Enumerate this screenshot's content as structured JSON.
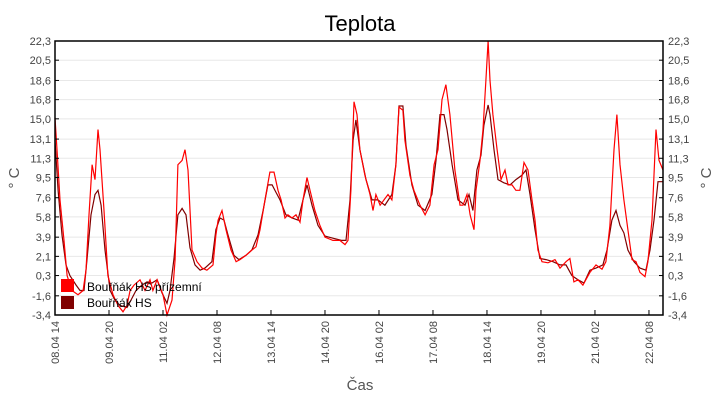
{
  "chart_data": {
    "type": "line",
    "title": "Teplota",
    "xlabel": "Čas",
    "ylabel": "° C",
    "ylabel_right": "° C",
    "x_unit": "hours since 08.04 14:00",
    "xlim": [
      0,
      337.8
    ],
    "ylim": [
      -3.4,
      22.3
    ],
    "grid": true,
    "legend_position": "bottom-left",
    "y_ticks": [
      22.3,
      20.5,
      18.6,
      16.8,
      15.0,
      13.1,
      11.3,
      9.5,
      7.6,
      5.8,
      3.9,
      2.1,
      0.3,
      -1.6,
      -3.4
    ],
    "y_tick_labels": [
      "22,3",
      "20,5",
      "18,6",
      "16,8",
      "15,0",
      "13,1",
      "11,3",
      "9,5",
      "7,6",
      "5,8",
      "3,9",
      "2,1",
      "0,3",
      "-1,6",
      "-3,4"
    ],
    "x_ticks": [
      0,
      30,
      60,
      90,
      120,
      150,
      180,
      210,
      240,
      270,
      300,
      330
    ],
    "x_tick_labels": [
      "08.04 14",
      "09.04 20",
      "11.04 02",
      "12.04 08",
      "13.04 14",
      "14.04 20",
      "16.04 02",
      "17.04 08",
      "18.04 14",
      "19.04 20",
      "21.04 02",
      "22.04 08"
    ],
    "series": [
      {
        "name": "Bouřňák HS přízemní",
        "color": "#ff0000",
        "x": [
          0,
          1.1,
          2.8,
          5.0,
          6.7,
          9.4,
          12.8,
          15.6,
          17.2,
          18.9,
          20.6,
          22.2,
          23.9,
          25.0,
          27.2,
          29.4,
          32.2,
          35.0,
          37.8,
          40.0,
          41.7,
          43.9,
          47.2,
          50.0,
          52.8,
          54.4,
          56.7,
          60.0,
          62.2,
          65.0,
          66.7,
          68.3,
          70.6,
          72.2,
          73.9,
          76.1,
          78.9,
          81.7,
          84.4,
          87.8,
          89.4,
          90.6,
          92.8,
          95.0,
          97.8,
          100.6,
          102.8,
          106.1,
          109.4,
          111.7,
          113.9,
          116.7,
          119.4,
          121.7,
          123.9,
          125.6,
          127.8,
          129.4,
          131.7,
          133.9,
          136.1,
          137.8,
          140.0,
          141.7,
          144.4,
          147.2,
          150.0,
          154.4,
          158.3,
          161.1,
          162.8,
          164.4,
          166.1,
          167.8,
          169.4,
          172.2,
          175.0,
          176.7,
          178.3,
          180.6,
          182.8,
          185.0,
          187.2,
          189.4,
          191.1,
          193.3,
          194.4,
          197.2,
          199.4,
          202.8,
          205.6,
          208.3,
          210.6,
          212.8,
          215.0,
          217.2,
          219.4,
          222.2,
          225.0,
          226.7,
          228.9,
          230.6,
          232.8,
          233.9,
          236.1,
          237.8,
          239.4,
          240.6,
          241.7,
          243.3,
          245.6,
          247.8,
          250.0,
          251.7,
          253.9,
          256.1,
          258.3,
          260.6,
          262.8,
          265.0,
          266.7,
          268.3,
          270.6,
          273.9,
          277.8,
          280.6,
          283.9,
          286.1,
          288.3,
          290.6,
          293.3,
          297.2,
          300.6,
          303.9,
          306.1,
          308.3,
          310.6,
          312.2,
          313.9,
          316.1,
          318.3,
          320.6,
          322.8,
          325.0,
          327.8,
          329.4,
          331.7,
          333.9,
          335.6,
          337.8
        ],
        "y": [
          15.1,
          12.1,
          7.4,
          3.6,
          0.3,
          -1.1,
          -1.5,
          -1.1,
          0.8,
          6.0,
          10.7,
          9.3,
          14.0,
          12.1,
          6.4,
          0.3,
          -1.5,
          -2.5,
          -3.1,
          -2.5,
          -1.1,
          -0.6,
          -0.1,
          -1.1,
          -0.1,
          -1.1,
          -0.1,
          -1.5,
          -3.4,
          -2.0,
          1.8,
          10.7,
          11.1,
          12.1,
          10.2,
          2.7,
          1.6,
          1.0,
          0.8,
          1.3,
          4.1,
          5.5,
          6.4,
          4.6,
          2.7,
          1.6,
          1.8,
          2.2,
          2.7,
          3.0,
          4.6,
          7.4,
          10.0,
          10.0,
          8.3,
          7.4,
          5.7,
          6.0,
          5.7,
          6.0,
          5.3,
          7.4,
          9.5,
          8.3,
          6.4,
          5.0,
          3.9,
          3.6,
          3.6,
          3.2,
          3.6,
          8.3,
          16.6,
          15.4,
          12.1,
          9.7,
          7.9,
          6.4,
          7.9,
          6.9,
          7.4,
          7.9,
          7.4,
          10.7,
          16.1,
          15.8,
          13.0,
          9.7,
          8.3,
          6.9,
          6.0,
          6.9,
          10.7,
          12.1,
          16.8,
          18.2,
          15.4,
          10.2,
          6.9,
          6.9,
          7.9,
          6.0,
          4.6,
          8.3,
          11.1,
          14.0,
          18.6,
          22.3,
          18.6,
          15.4,
          12.1,
          9.3,
          10.2,
          8.8,
          8.8,
          8.3,
          8.3,
          10.9,
          10.2,
          7.4,
          5.5,
          2.7,
          1.6,
          1.5,
          1.8,
          1.0,
          1.6,
          1.9,
          -0.3,
          -0.1,
          -0.6,
          0.6,
          1.3,
          0.9,
          1.6,
          5.0,
          12.1,
          15.4,
          10.7,
          7.4,
          4.6,
          1.8,
          1.6,
          0.6,
          0.2,
          1.6,
          5.5,
          14.0,
          11.1,
          10.2
        ]
      },
      {
        "name": "Bouřňák HS",
        "color": "#800000",
        "x": [
          0,
          1.7,
          3.9,
          6.1,
          8.3,
          11.7,
          13.9,
          16.1,
          17.8,
          20.0,
          22.2,
          23.9,
          25.6,
          27.8,
          30.6,
          33.3,
          36.1,
          40.0,
          42.2,
          45.0,
          48.3,
          51.1,
          53.9,
          56.7,
          59.4,
          62.2,
          63.9,
          66.1,
          68.3,
          70.6,
          72.8,
          75.0,
          77.8,
          80.6,
          83.3,
          87.2,
          89.4,
          91.7,
          93.9,
          96.1,
          99.4,
          102.2,
          106.1,
          109.4,
          112.8,
          115.6,
          118.3,
          120.6,
          122.8,
          125.0,
          128.3,
          131.7,
          135.0,
          137.8,
          140.0,
          142.8,
          146.1,
          150.0,
          154.4,
          159.4,
          161.7,
          163.9,
          165.6,
          167.2,
          169.4,
          172.8,
          176.1,
          179.4,
          183.3,
          187.2,
          189.4,
          191.1,
          193.3,
          195.0,
          198.3,
          201.7,
          205.6,
          209.4,
          211.7,
          213.9,
          216.1,
          217.8,
          220.6,
          223.9,
          227.8,
          230.0,
          232.2,
          234.4,
          236.7,
          238.3,
          240.6,
          241.7,
          243.9,
          246.1,
          249.4,
          252.8,
          256.1,
          259.4,
          261.7,
          263.9,
          266.7,
          269.4,
          272.8,
          276.7,
          280.6,
          283.9,
          287.2,
          290.6,
          293.9,
          297.2,
          300.6,
          304.4,
          306.7,
          309.4,
          311.7,
          313.9,
          316.1,
          318.3,
          321.7,
          325.0,
          328.3,
          330.6,
          332.8,
          335.0,
          337.8
        ],
        "y": [
          13.0,
          8.3,
          4.1,
          1.3,
          0.3,
          -0.6,
          -1.1,
          -1.1,
          1.8,
          6.0,
          7.9,
          8.3,
          6.9,
          2.7,
          -1.1,
          -2.0,
          -2.5,
          -2.7,
          -2.0,
          -1.1,
          -0.6,
          -0.3,
          -0.4,
          -0.1,
          -1.3,
          -2.3,
          -1.1,
          1.9,
          6.0,
          6.6,
          6.0,
          2.9,
          1.3,
          0.8,
          1.0,
          1.6,
          4.6,
          5.7,
          5.5,
          4.1,
          2.2,
          1.8,
          2.2,
          2.7,
          4.1,
          6.4,
          8.8,
          8.8,
          8.1,
          7.4,
          6.0,
          5.7,
          5.5,
          7.4,
          8.8,
          6.9,
          5.0,
          4.0,
          3.8,
          3.6,
          3.6,
          7.4,
          13.0,
          14.9,
          12.1,
          9.3,
          7.4,
          7.4,
          6.9,
          7.9,
          10.7,
          16.2,
          16.2,
          12.5,
          8.8,
          6.9,
          6.4,
          7.9,
          11.1,
          15.4,
          15.4,
          14.0,
          10.7,
          7.4,
          6.9,
          7.9,
          6.4,
          10.2,
          11.6,
          14.4,
          16.3,
          15.4,
          12.1,
          9.3,
          9.0,
          8.8,
          9.3,
          9.7,
          10.2,
          7.9,
          4.6,
          1.9,
          1.8,
          1.6,
          1.3,
          1.3,
          0.3,
          -0.1,
          -0.4,
          0.8,
          1.0,
          1.3,
          2.7,
          5.5,
          6.4,
          5.0,
          4.3,
          2.7,
          1.6,
          1.0,
          0.8,
          2.7,
          5.5,
          9.1,
          9.1
        ]
      }
    ]
  }
}
